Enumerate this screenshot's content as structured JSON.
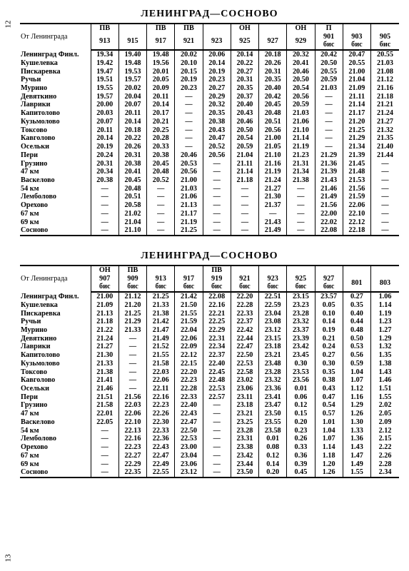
{
  "route_title": "ЛЕНИНГРАД—СОСНОВО",
  "from_label": "От Ленинграда",
  "page_top": "12",
  "page_bottom": "13",
  "stations": [
    "Ленинград Финл.",
    "Кушелевка",
    "Пискаревка",
    "Ручьи",
    "Мурино",
    "Девяткино",
    "Лаврики",
    "Капитолово",
    "Кузьмолово",
    "Токсово",
    "Кавголово",
    "Осельки",
    "Пери",
    "Грузино",
    "47 км",
    "Васкелово",
    "54 км",
    "Лемболово",
    "Орехово",
    "67 км",
    "69 км",
    "Сосново"
  ],
  "tables": [
    {
      "columns": [
        {
          "top": "ПВ",
          "bot": "913"
        },
        {
          "top": "",
          "bot": "915"
        },
        {
          "top": "ПВ",
          "bot": "917"
        },
        {
          "top": "ПВ",
          "bot": "921"
        },
        {
          "top": "",
          "bot": "923"
        },
        {
          "top": "ОН",
          "bot": "925"
        },
        {
          "top": "",
          "bot": "927"
        },
        {
          "top": "ОН",
          "bot": "929"
        },
        {
          "top": "П",
          "bot": "901 бис"
        },
        {
          "top": "",
          "bot": "903 бис"
        },
        {
          "top": "",
          "bot": "905 бис"
        }
      ],
      "rows": [
        [
          "19.34",
          "19.40",
          "19.48",
          "20.02",
          "20.06",
          "20.14",
          "20.18",
          "20.32",
          "20.42",
          "20.47",
          "20.55"
        ],
        [
          "19.42",
          "19.48",
          "19.56",
          "20.10",
          "20.14",
          "20.22",
          "20.26",
          "20.41",
          "20.50",
          "20.55",
          "21.03"
        ],
        [
          "19.47",
          "19.53",
          "20.01",
          "20.15",
          "20.19",
          "20.27",
          "20.31",
          "20.46",
          "20.55",
          "21.00",
          "21.08"
        ],
        [
          "19.51",
          "19.57",
          "20.05",
          "20.19",
          "20.23",
          "20.31",
          "20.35",
          "20.50",
          "20.59",
          "21.04",
          "21.12"
        ],
        [
          "19.55",
          "20.02",
          "20.09",
          "20.23",
          "20.27",
          "20.35",
          "20.40",
          "20.54",
          "21.03",
          "21.09",
          "21.16"
        ],
        [
          "19.57",
          "20.04",
          "20.11",
          "—",
          "20.29",
          "20.37",
          "20.42",
          "20.56",
          "—",
          "21.11",
          "21.18"
        ],
        [
          "20.00",
          "20.07",
          "20.14",
          "—",
          "20.32",
          "20.40",
          "20.45",
          "20.59",
          "—",
          "21.14",
          "21.21"
        ],
        [
          "20.03",
          "20.11",
          "20.17",
          "—",
          "20.35",
          "20.43",
          "20.48",
          "21.03",
          "—",
          "21.17",
          "21.24"
        ],
        [
          "20.07",
          "20.14",
          "20.21",
          "—",
          "20.38",
          "20.46",
          "20.51",
          "21.06",
          "—",
          "21.20",
          "21.27"
        ],
        [
          "20.11",
          "20.18",
          "20.25",
          "—",
          "20.43",
          "20.50",
          "20.56",
          "21.10",
          "—",
          "21.25",
          "21.32"
        ],
        [
          "20.14",
          "20.22",
          "20.28",
          "—",
          "20.47",
          "20.54",
          "21.00",
          "21.14",
          "—",
          "21.29",
          "21.35"
        ],
        [
          "20.19",
          "20.26",
          "20.33",
          "—",
          "20.52",
          "20.59",
          "21.05",
          "21.19",
          "—",
          "21.34",
          "21.40"
        ],
        [
          "20.24",
          "20.31",
          "20.38",
          "20.46",
          "20.56",
          "21.04",
          "21.10",
          "21.23",
          "21.29",
          "21.39",
          "21.44"
        ],
        [
          "20.31",
          "20.38",
          "20.45",
          "20.53",
          "—",
          "21.11",
          "21.16",
          "21.31",
          "21.36",
          "21.45",
          "—"
        ],
        [
          "20.34",
          "20.41",
          "20.48",
          "20.56",
          "—",
          "21.14",
          "21.19",
          "21.34",
          "21.39",
          "21.48",
          "—"
        ],
        [
          "20.38",
          "20.45",
          "20.52",
          "21.00",
          "—",
          "21.18",
          "21.24",
          "21.38",
          "21.43",
          "21.53",
          "—"
        ],
        [
          "—",
          "20.48",
          "—",
          "21.03",
          "—",
          "—",
          "21.27",
          "—",
          "21.46",
          "21.56",
          "—"
        ],
        [
          "—",
          "20.51",
          "—",
          "21.06",
          "—",
          "—",
          "21.30",
          "—",
          "21.49",
          "21.59",
          "—"
        ],
        [
          "—",
          "20.58",
          "—",
          "21.13",
          "—",
          "—",
          "21.37",
          "—",
          "21.56",
          "22.06",
          "—"
        ],
        [
          "—",
          "21.02",
          "—",
          "21.17",
          "—",
          "—",
          "—",
          "—",
          "22.00",
          "22.10",
          "—"
        ],
        [
          "—",
          "21.04",
          "—",
          "21.19",
          "—",
          "—",
          "21.43",
          "—",
          "22.02",
          "22.12",
          "—"
        ],
        [
          "—",
          "21.10",
          "—",
          "21.25",
          "—",
          "—",
          "21.49",
          "—",
          "22.08",
          "22.18",
          "—"
        ]
      ]
    },
    {
      "columns": [
        {
          "top": "ОН",
          "bot": "907 бис"
        },
        {
          "top": "ПВ",
          "bot": "909 бис"
        },
        {
          "top": "",
          "bot": "913 бис"
        },
        {
          "top": "",
          "bot": "917 бис"
        },
        {
          "top": "ПВ",
          "bot": "919 бис"
        },
        {
          "top": "",
          "bot": "921 бис"
        },
        {
          "top": "",
          "bot": "923 бис"
        },
        {
          "top": "",
          "bot": "925 бис"
        },
        {
          "top": "",
          "bot": "927 бис"
        },
        {
          "top": "",
          "bot": "801"
        },
        {
          "top": "",
          "bot": "803"
        }
      ],
      "rows": [
        [
          "21.00",
          "21.12",
          "21.25",
          "21.42",
          "22.08",
          "22.20",
          "22.51",
          "23.15",
          "23.57",
          "0.27",
          "1.06"
        ],
        [
          "21.09",
          "21.20",
          "21.33",
          "21.50",
          "22.16",
          "22.28",
          "22.59",
          "23.23",
          "0.05",
          "0.35",
          "1.14"
        ],
        [
          "21.13",
          "21.25",
          "21.38",
          "21.55",
          "22.21",
          "22.33",
          "23.04",
          "23.28",
          "0.10",
          "0.40",
          "1.19"
        ],
        [
          "21.18",
          "21.29",
          "21.42",
          "21.59",
          "22.25",
          "22.37",
          "23.08",
          "23.32",
          "0.14",
          "0.44",
          "1.23"
        ],
        [
          "21.22",
          "21.33",
          "21.47",
          "22.04",
          "22.29",
          "22.42",
          "23.12",
          "23.37",
          "0.19",
          "0.48",
          "1.27"
        ],
        [
          "21.24",
          "—",
          "21.49",
          "22.06",
          "22.31",
          "22.44",
          "23.15",
          "23.39",
          "0.21",
          "0.50",
          "1.29"
        ],
        [
          "21.27",
          "—",
          "21.52",
          "22.09",
          "22.34",
          "22.47",
          "23.18",
          "23.42",
          "0.24",
          "0.53",
          "1.32"
        ],
        [
          "21.30",
          "—",
          "21.55",
          "22.12",
          "22.37",
          "22.50",
          "23.21",
          "23.45",
          "0.27",
          "0.56",
          "1.35"
        ],
        [
          "21.33",
          "—",
          "21.58",
          "22.15",
          "22.40",
          "22.53",
          "23.48",
          "0.30",
          "0.30",
          "0.59",
          "1.38"
        ],
        [
          "21.38",
          "—",
          "22.03",
          "22.20",
          "22.45",
          "22.58",
          "23.28",
          "23.53",
          "0.35",
          "1.04",
          "1.43"
        ],
        [
          "21.41",
          "—",
          "22.06",
          "22.23",
          "22.48",
          "23.02",
          "23.32",
          "23.56",
          "0.38",
          "1.07",
          "1.46"
        ],
        [
          "21.46",
          "—",
          "22.11",
          "22.28",
          "22.53",
          "23.06",
          "23.36",
          "0.01",
          "0.43",
          "1.12",
          "1.51"
        ],
        [
          "21.51",
          "21.56",
          "22.16",
          "22.33",
          "22.57",
          "23.11",
          "23.41",
          "0.06",
          "0.47",
          "1.16",
          "1.55"
        ],
        [
          "21.58",
          "22.03",
          "22.23",
          "22.40",
          "—",
          "23.18",
          "23.47",
          "0.12",
          "0.54",
          "1.29",
          "2.02"
        ],
        [
          "22.01",
          "22.06",
          "22.26",
          "22.43",
          "—",
          "23.21",
          "23.50",
          "0.15",
          "0.57",
          "1.26",
          "2.05"
        ],
        [
          "22.05",
          "22.10",
          "22.30",
          "22.47",
          "—",
          "23.25",
          "23.55",
          "0.20",
          "1.01",
          "1.30",
          "2.09"
        ],
        [
          "—",
          "22.13",
          "22.33",
          "22.50",
          "—",
          "23.28",
          "23.58",
          "0.23",
          "1.04",
          "1.33",
          "2.12"
        ],
        [
          "—",
          "22.16",
          "22.36",
          "22.53",
          "—",
          "23.31",
          "0.01",
          "0.26",
          "1.07",
          "1.36",
          "2.15"
        ],
        [
          "—",
          "22.23",
          "22.43",
          "23.00",
          "—",
          "23.38",
          "0.08",
          "0.33",
          "1.14",
          "1.43",
          "2.22"
        ],
        [
          "—",
          "22.27",
          "22.47",
          "23.04",
          "—",
          "23.42",
          "0.12",
          "0.36",
          "1.18",
          "1.47",
          "2.26"
        ],
        [
          "—",
          "22.29",
          "22.49",
          "23.06",
          "—",
          "23.44",
          "0.14",
          "0.39",
          "1.20",
          "1.49",
          "2.28"
        ],
        [
          "—",
          "22.35",
          "22.55",
          "23.12",
          "—",
          "23.50",
          "0.20",
          "0.45",
          "1.26",
          "1.55",
          "2.34"
        ]
      ]
    }
  ]
}
